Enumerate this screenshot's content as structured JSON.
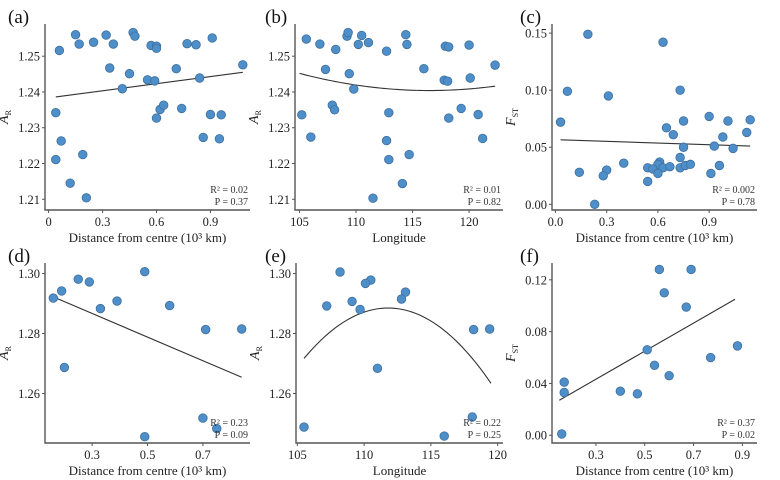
{
  "chart_data": [
    {
      "id": "a",
      "type": "scatter",
      "panel_label": "(a)",
      "xlabel": "Distance from centre (10³ km)",
      "ylabel_main": "A",
      "ylabel_sub": "R",
      "xlim": [
        -0.02,
        1.12
      ],
      "ylim": [
        1.207,
        1.259
      ],
      "xticks": [
        0,
        0.3,
        0.6,
        0.9
      ],
      "xtick_labels": [
        "0",
        "0.3",
        "0.6",
        "0.9"
      ],
      "yticks": [
        1.21,
        1.22,
        1.23,
        1.24,
        1.25
      ],
      "ytick_labels": [
        "1.21",
        "1.22",
        "1.23",
        "1.24",
        "1.25"
      ],
      "stats": {
        "r2_label": "R² = 0.02",
        "p_label": "P = 0.37"
      },
      "fit": {
        "kind": "linear",
        "x": [
          0.04,
          1.08
        ],
        "y": [
          1.2386,
          1.2455
        ]
      },
      "points": [
        [
          0.06,
          1.2516
        ],
        [
          0.15,
          1.256
        ],
        [
          0.17,
          1.2534
        ],
        [
          0.25,
          1.2539
        ],
        [
          0.32,
          1.2559
        ],
        [
          0.36,
          1.2534
        ],
        [
          0.47,
          1.2566
        ],
        [
          0.48,
          1.2556
        ],
        [
          0.57,
          1.253
        ],
        [
          0.6,
          1.2528
        ],
        [
          0.6,
          1.2522
        ],
        [
          0.77,
          1.2535
        ],
        [
          0.82,
          1.2532
        ],
        [
          0.91,
          1.2551
        ],
        [
          0.34,
          1.2467
        ],
        [
          0.45,
          1.2451
        ],
        [
          0.55,
          1.2434
        ],
        [
          0.59,
          1.2431
        ],
        [
          0.71,
          1.2465
        ],
        [
          0.84,
          1.2439
        ],
        [
          1.08,
          1.2476
        ],
        [
          0.41,
          1.2409
        ],
        [
          0.04,
          1.2342
        ],
        [
          0.62,
          1.2351
        ],
        [
          0.64,
          1.2363
        ],
        [
          0.6,
          1.2327
        ],
        [
          0.74,
          1.2354
        ],
        [
          0.9,
          1.2337
        ],
        [
          0.96,
          1.2336
        ],
        [
          0.07,
          1.2263
        ],
        [
          0.86,
          1.2273
        ],
        [
          0.95,
          1.2269
        ],
        [
          0.04,
          1.2211
        ],
        [
          0.19,
          1.2225
        ],
        [
          0.12,
          1.2145
        ],
        [
          0.21,
          1.2104
        ]
      ]
    },
    {
      "id": "b",
      "type": "scatter",
      "panel_label": "(b)",
      "xlabel": "Longitude",
      "ylabel_main": "A",
      "ylabel_sub": "R",
      "xlim": [
        104.6,
        123.0
      ],
      "ylim": [
        1.207,
        1.259
      ],
      "xticks": [
        105,
        110,
        115,
        120
      ],
      "xtick_labels": [
        "105",
        "110",
        "115",
        "120"
      ],
      "yticks": [
        1.21,
        1.22,
        1.23,
        1.24,
        1.25
      ],
      "ytick_labels": [
        "1.21",
        "1.22",
        "1.23",
        "1.24",
        "1.25"
      ],
      "stats": {
        "r2_label": "R² = 0.01",
        "p_label": "P = 0.82"
      },
      "fit": {
        "kind": "quadratic",
        "x_range": [
          105.0,
          122.3
        ],
        "vertex_x": 116.5,
        "vertex_y": 1.2404,
        "y_at_start": 1.2452
      },
      "points": [
        [
          105.6,
          1.2548
        ],
        [
          106.8,
          1.2534
        ],
        [
          108.2,
          1.2519
        ],
        [
          109.2,
          1.2556
        ],
        [
          109.3,
          1.2566
        ],
        [
          110.2,
          1.2533
        ],
        [
          110.5,
          1.2558
        ],
        [
          111.1,
          1.2538
        ],
        [
          112.7,
          1.2514
        ],
        [
          114.4,
          1.256
        ],
        [
          114.5,
          1.2533
        ],
        [
          117.9,
          1.2528
        ],
        [
          118.2,
          1.2526
        ],
        [
          120.0,
          1.2531
        ],
        [
          107.3,
          1.2463
        ],
        [
          109.4,
          1.2451
        ],
        [
          116.0,
          1.2465
        ],
        [
          117.8,
          1.2433
        ],
        [
          118.1,
          1.243
        ],
        [
          120.1,
          1.2439
        ],
        [
          122.3,
          1.2475
        ],
        [
          109.8,
          1.2408
        ],
        [
          105.2,
          1.2336
        ],
        [
          107.9,
          1.2363
        ],
        [
          108.1,
          1.235
        ],
        [
          112.9,
          1.2342
        ],
        [
          118.2,
          1.2327
        ],
        [
          119.3,
          1.2354
        ],
        [
          120.8,
          1.2337
        ],
        [
          106.0,
          1.2274
        ],
        [
          112.7,
          1.2264
        ],
        [
          121.2,
          1.227
        ],
        [
          112.9,
          1.2211
        ],
        [
          114.7,
          1.2225
        ],
        [
          114.1,
          1.2144
        ],
        [
          111.5,
          1.2103
        ]
      ]
    },
    {
      "id": "c",
      "type": "scatter",
      "panel_label": "(c)",
      "xlabel": "Distance from centre (10³ km)",
      "ylabel_main": "F",
      "ylabel_sub": "ST",
      "xlim": [
        -0.02,
        1.18
      ],
      "ylim": [
        -0.005,
        0.158
      ],
      "xticks": [
        0.0,
        0.3,
        0.6,
        0.9
      ],
      "xtick_labels": [
        "0.0",
        "0.3",
        "0.6",
        "0.9"
      ],
      "yticks": [
        0.0,
        0.05,
        0.1,
        0.15
      ],
      "ytick_labels": [
        "0.00",
        "0.05",
        "0.10",
        "0.15"
      ],
      "stats": {
        "r2_label": "R² = 0.002",
        "p_label": "P = 0.78"
      },
      "fit": {
        "kind": "linear",
        "x": [
          0.03,
          1.14
        ],
        "y": [
          0.0565,
          0.051
        ]
      },
      "points": [
        [
          0.19,
          0.149
        ],
        [
          0.63,
          0.142
        ],
        [
          0.07,
          0.099
        ],
        [
          0.31,
          0.095
        ],
        [
          0.73,
          0.1
        ],
        [
          0.03,
          0.072
        ],
        [
          0.75,
          0.073
        ],
        [
          0.9,
          0.077
        ],
        [
          1.01,
          0.073
        ],
        [
          1.14,
          0.074
        ],
        [
          0.65,
          0.067
        ],
        [
          0.69,
          0.061
        ],
        [
          1.12,
          0.063
        ],
        [
          0.98,
          0.059
        ],
        [
          0.75,
          0.05
        ],
        [
          0.93,
          0.051
        ],
        [
          1.04,
          0.049
        ],
        [
          0.73,
          0.041
        ],
        [
          0.61,
          0.037
        ],
        [
          0.6,
          0.035
        ],
        [
          0.4,
          0.036
        ],
        [
          0.54,
          0.032
        ],
        [
          0.57,
          0.031
        ],
        [
          0.63,
          0.032
        ],
        [
          0.67,
          0.033
        ],
        [
          0.73,
          0.032
        ],
        [
          0.76,
          0.034
        ],
        [
          0.79,
          0.035
        ],
        [
          0.96,
          0.034
        ],
        [
          0.14,
          0.028
        ],
        [
          0.3,
          0.03
        ],
        [
          0.28,
          0.025
        ],
        [
          0.6,
          0.027
        ],
        [
          0.91,
          0.027
        ],
        [
          0.54,
          0.02
        ],
        [
          0.23,
          0.0
        ]
      ]
    },
    {
      "id": "d",
      "type": "scatter",
      "panel_label": "(d)",
      "xlabel": "Distance from centre (10³ km)",
      "ylabel_main": "A",
      "ylabel_sub": "R",
      "xlim": [
        0.13,
        0.87
      ],
      "ylim": [
        1.2435,
        1.3035
      ],
      "xticks": [
        0.3,
        0.5,
        0.7
      ],
      "xtick_labels": [
        "0.3",
        "0.5",
        "0.7"
      ],
      "yticks": [
        1.26,
        1.28,
        1.3
      ],
      "ytick_labels": [
        "1.26",
        "1.28",
        "1.30"
      ],
      "stats": {
        "r2_label": "R² = 0.23",
        "p_label": "P = 0.09"
      },
      "fit": {
        "kind": "linear",
        "x": [
          0.16,
          0.84
        ],
        "y": [
          1.2922,
          1.2654
        ]
      },
      "points": [
        [
          0.16,
          1.2918
        ],
        [
          0.19,
          1.2942
        ],
        [
          0.25,
          1.2981
        ],
        [
          0.29,
          1.2972
        ],
        [
          0.33,
          1.2883
        ],
        [
          0.39,
          1.2908
        ],
        [
          0.49,
          1.3006
        ],
        [
          0.58,
          1.2893
        ],
        [
          0.71,
          1.2813
        ],
        [
          0.84,
          1.2815
        ],
        [
          0.2,
          1.2687
        ],
        [
          0.7,
          1.2518
        ],
        [
          0.75,
          1.2483
        ],
        [
          0.49,
          1.2456
        ]
      ]
    },
    {
      "id": "e",
      "type": "scatter",
      "panel_label": "(e)",
      "xlabel": "Longitude",
      "ylabel_main": "A",
      "ylabel_sub": "R",
      "xlim": [
        104.9,
        120.4
      ],
      "ylim": [
        1.2435,
        1.3035
      ],
      "xticks": [
        105,
        110,
        115,
        120
      ],
      "xtick_labels": [
        "105",
        "110",
        "115",
        "120"
      ],
      "yticks": [
        1.26,
        1.28,
        1.3
      ],
      "ytick_labels": [
        "1.26",
        "1.28",
        "1.30"
      ],
      "stats": {
        "r2_label": "R² = 0.22",
        "p_label": "P = 0.25"
      },
      "fit": {
        "kind": "quadratic",
        "x_range": [
          105.5,
          119.5
        ],
        "vertex_x": 111.8,
        "vertex_y": 1.2885,
        "y_at_start": 1.2717
      },
      "points": [
        [
          108.2,
          1.3005
        ],
        [
          110.5,
          1.2978
        ],
        [
          110.1,
          1.2967
        ],
        [
          113.1,
          1.2938
        ],
        [
          112.8,
          1.2915
        ],
        [
          107.2,
          1.2892
        ],
        [
          109.1,
          1.2907
        ],
        [
          109.7,
          1.288
        ],
        [
          118.2,
          1.2813
        ],
        [
          119.4,
          1.2815
        ],
        [
          111.0,
          1.2684
        ],
        [
          105.5,
          1.2488
        ],
        [
          118.1,
          1.2522
        ],
        [
          116.0,
          1.2458
        ]
      ]
    },
    {
      "id": "f",
      "type": "scatter",
      "panel_label": "(f)",
      "xlabel": "Distance from centre (10³ km)",
      "ylabel_main": "F",
      "ylabel_sub": "ST",
      "xlim": [
        0.12,
        0.96
      ],
      "ylim": [
        -0.006,
        0.133
      ],
      "xticks": [
        0.3,
        0.5,
        0.7,
        0.9
      ],
      "xtick_labels": [
        "0.3",
        "0.5",
        "0.7",
        "0.9"
      ],
      "yticks": [
        0.0,
        0.04,
        0.08,
        0.12
      ],
      "ytick_labels": [
        "0.00",
        "0.04",
        "0.08",
        "0.12"
      ],
      "stats": {
        "r2_label": "R² = 0.37",
        "p_label": "P = 0.02"
      },
      "fit": {
        "kind": "linear",
        "x": [
          0.15,
          0.87
        ],
        "y": [
          0.027,
          0.105
        ]
      },
      "points": [
        [
          0.56,
          0.128
        ],
        [
          0.69,
          0.128
        ],
        [
          0.58,
          0.11
        ],
        [
          0.67,
          0.099
        ],
        [
          0.51,
          0.066
        ],
        [
          0.88,
          0.069
        ],
        [
          0.77,
          0.06
        ],
        [
          0.54,
          0.054
        ],
        [
          0.6,
          0.046
        ],
        [
          0.17,
          0.041
        ],
        [
          0.17,
          0.033
        ],
        [
          0.4,
          0.034
        ],
        [
          0.47,
          0.032
        ],
        [
          0.16,
          0.001
        ]
      ]
    }
  ]
}
